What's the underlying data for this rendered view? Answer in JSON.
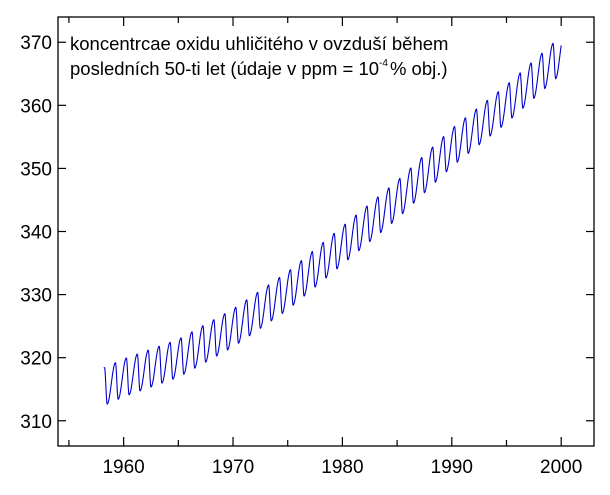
{
  "chart_data": {
    "type": "line",
    "title_lines": [
      "koncentrcae oxidu uhličitého v ovzduší během",
      "posledních 50-ti let (údaje v ppm = 10",
      "-4",
      "% obj.)"
    ],
    "xlabel": "",
    "ylabel": "",
    "xlim": [
      1954,
      2003
    ],
    "ylim": [
      306,
      374
    ],
    "x_ticks": [
      1960,
      1970,
      1980,
      1990,
      2000
    ],
    "x_tick_labels": [
      "1960",
      "1970",
      "1980",
      "1990",
      "2000"
    ],
    "y_ticks": [
      310,
      320,
      330,
      340,
      350,
      360,
      370
    ],
    "y_tick_labels": [
      "310",
      "320",
      "330",
      "340",
      "350",
      "360",
      "370"
    ],
    "grid": false,
    "legend": "none",
    "series": [
      {
        "color": "#0000cc",
        "x_start": 1958.2,
        "x_end": 2000.0,
        "samples_per_year": 48,
        "trend_anchor_years": [
          1958.2,
          1960,
          1965,
          1970,
          1975,
          1980,
          1985,
          1990,
          1995,
          2000
        ],
        "trend_anchor_values": [
          315.4,
          316.8,
          319.9,
          324.7,
          330.6,
          337.8,
          345.0,
          353.3,
          360.2,
          368.0
        ],
        "seasonal_amplitude": 3.0,
        "seasonal_peak_phase": 0.25,
        "seasonal_trough_phase": 0.5
      }
    ]
  }
}
